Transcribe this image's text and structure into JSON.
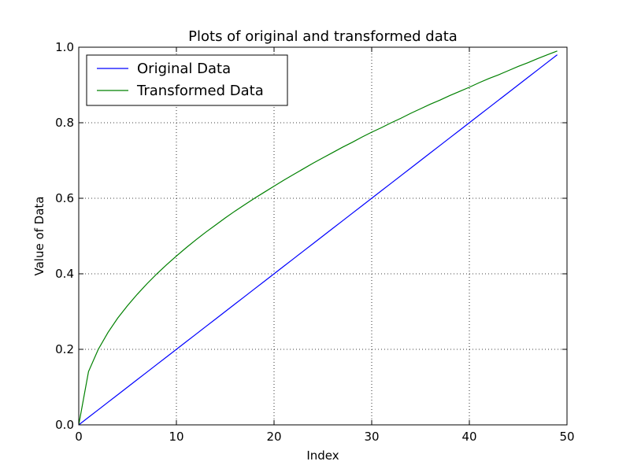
{
  "chart_data": {
    "type": "line",
    "title": "Plots of original and transformed data",
    "xlabel": "Index",
    "ylabel": "Value of Data",
    "xlim": [
      0,
      50
    ],
    "ylim": [
      0.0,
      1.0
    ],
    "xticks": [
      0,
      10,
      20,
      30,
      40,
      50
    ],
    "yticks": [
      0.0,
      0.2,
      0.4,
      0.6,
      0.8,
      1.0
    ],
    "xtick_labels": [
      "0",
      "10",
      "20",
      "30",
      "40",
      "50"
    ],
    "ytick_labels": [
      "0.0",
      "0.2",
      "0.4",
      "0.6",
      "0.8",
      "1.0"
    ],
    "grid": true,
    "legend_position": "top-left",
    "x": [
      0,
      1,
      2,
      3,
      4,
      5,
      6,
      7,
      8,
      9,
      10,
      11,
      12,
      13,
      14,
      15,
      16,
      17,
      18,
      19,
      20,
      21,
      22,
      23,
      24,
      25,
      26,
      27,
      28,
      29,
      30,
      31,
      32,
      33,
      34,
      35,
      36,
      37,
      38,
      39,
      40,
      41,
      42,
      43,
      44,
      45,
      46,
      47,
      48,
      49
    ],
    "series": [
      {
        "name": "Original Data",
        "color": "#0000ff",
        "values": [
          0.0,
          0.02,
          0.04,
          0.06,
          0.08,
          0.1,
          0.12,
          0.14,
          0.16,
          0.18,
          0.2,
          0.22,
          0.24,
          0.26,
          0.28,
          0.3,
          0.32,
          0.34,
          0.36,
          0.38,
          0.4,
          0.42,
          0.44,
          0.46,
          0.48,
          0.5,
          0.52,
          0.54,
          0.56,
          0.58,
          0.6,
          0.62,
          0.64,
          0.66,
          0.68,
          0.7,
          0.72,
          0.74,
          0.76,
          0.78,
          0.8,
          0.82,
          0.84,
          0.86,
          0.88,
          0.9,
          0.92,
          0.94,
          0.96,
          0.98
        ]
      },
      {
        "name": "Transformed Data",
        "color": "#008000",
        "values": [
          0.0,
          0.141,
          0.2,
          0.245,
          0.283,
          0.316,
          0.346,
          0.374,
          0.4,
          0.424,
          0.447,
          0.469,
          0.49,
          0.51,
          0.529,
          0.548,
          0.566,
          0.583,
          0.6,
          0.616,
          0.632,
          0.648,
          0.663,
          0.678,
          0.693,
          0.707,
          0.721,
          0.735,
          0.748,
          0.762,
          0.775,
          0.787,
          0.8,
          0.812,
          0.825,
          0.837,
          0.849,
          0.86,
          0.872,
          0.883,
          0.894,
          0.906,
          0.917,
          0.927,
          0.938,
          0.949,
          0.959,
          0.97,
          0.98,
          0.99
        ]
      }
    ]
  }
}
